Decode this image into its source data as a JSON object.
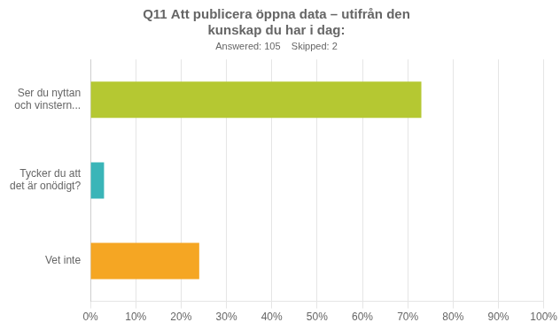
{
  "chart_data": {
    "type": "bar",
    "orientation": "horizontal",
    "title": "Q11 Att publicera öppna data – utifrån den\nkunskap du har i dag:",
    "subtitle": "Answered: 105    Skipped: 2",
    "categories": [
      "Ser du nyttan\noch vinstern...",
      "Tycker du att\ndet är onödigt?",
      "Vet inte"
    ],
    "values": [
      73,
      3,
      24
    ],
    "colors": [
      "#b5c832",
      "#3ab5b8",
      "#f5a623"
    ],
    "xlim": [
      0,
      100
    ],
    "xticks": [
      {
        "value": 0,
        "label": "0%"
      },
      {
        "value": 10,
        "label": "10%"
      },
      {
        "value": 20,
        "label": "20%"
      },
      {
        "value": 30,
        "label": "30%"
      },
      {
        "value": 40,
        "label": "40%"
      },
      {
        "value": 50,
        "label": "50%"
      },
      {
        "value": 60,
        "label": "60%"
      },
      {
        "value": 70,
        "label": "70%"
      },
      {
        "value": 80,
        "label": "80%"
      },
      {
        "value": 90,
        "label": "90%"
      },
      {
        "value": 100,
        "label": "100%"
      }
    ],
    "grid": true
  }
}
